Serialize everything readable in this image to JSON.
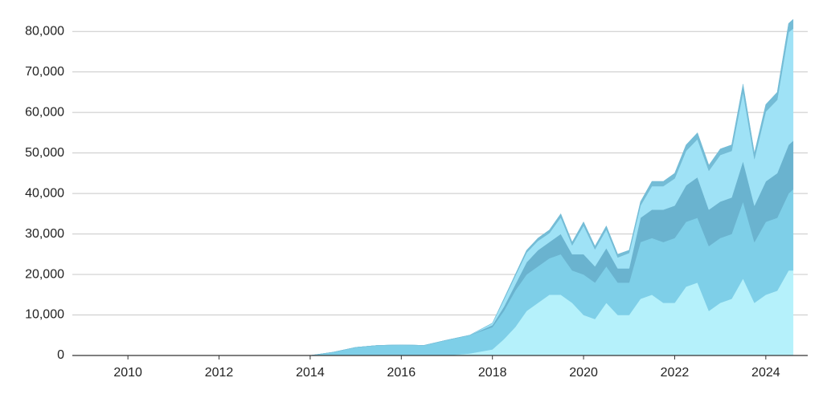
{
  "chart_data": {
    "type": "area",
    "stacked": true,
    "grid": true,
    "x": [
      2014.0,
      2014.5,
      2015.0,
      2015.5,
      2016.0,
      2016.5,
      2017.0,
      2017.5,
      2018.0,
      2018.25,
      2018.5,
      2018.75,
      2019.0,
      2019.25,
      2019.5,
      2019.75,
      2020.0,
      2020.25,
      2020.5,
      2020.75,
      2021.0,
      2021.25,
      2021.5,
      2021.75,
      2022.0,
      2022.25,
      2022.5,
      2022.75,
      2023.0,
      2023.25,
      2023.5,
      2023.75,
      2024.0,
      2024.25,
      2024.5,
      2024.6
    ],
    "xlim": [
      2008.78,
      2024.92
    ],
    "xticks": [
      2010,
      2012,
      2014,
      2016,
      2018,
      2020,
      2022,
      2024
    ],
    "ylim": [
      0,
      84000
    ],
    "yticks": [
      0,
      {
        "value": 10000,
        "label": "10,000"
      },
      {
        "value": 20000,
        "label": "20,000"
      },
      {
        "value": 30000,
        "label": "30,000"
      },
      {
        "value": 40000,
        "label": "40,000"
      },
      {
        "value": 50000,
        "label": "50,000"
      },
      {
        "value": 60000,
        "label": "60,000"
      },
      {
        "value": 70000,
        "label": "70,000"
      },
      {
        "value": 80000,
        "label": "80,000"
      }
    ],
    "series": [
      {
        "color": "#b5f1fb",
        "values": [
          0,
          0,
          0,
          0,
          0,
          0,
          0,
          500,
          1500,
          4000,
          7000,
          11000,
          13000,
          15000,
          15000,
          13000,
          10000,
          9000,
          13000,
          10000,
          10000,
          14000,
          15000,
          13000,
          13000,
          17000,
          18000,
          11000,
          13000,
          14000,
          19000,
          13000,
          15000,
          16000,
          21000,
          21000
        ]
      },
      {
        "color": "#7ecfe8",
        "values": [
          0,
          800,
          2000,
          2500,
          2600,
          2500,
          3800,
          4500,
          5500,
          7000,
          9000,
          9000,
          9000,
          9000,
          10000,
          8000,
          10000,
          9000,
          9000,
          8000,
          8000,
          14000,
          14000,
          15000,
          16000,
          16000,
          16000,
          16000,
          16000,
          16000,
          19000,
          15000,
          18000,
          18000,
          19000,
          20000
        ]
      },
      {
        "color": "#6ab3cf",
        "values": [
          0,
          0,
          0,
          0,
          0,
          0,
          0,
          0,
          500,
          1000,
          1500,
          3000,
          4000,
          4000,
          5000,
          4000,
          5000,
          4000,
          4500,
          3500,
          3500,
          6000,
          7000,
          8000,
          8000,
          9000,
          10000,
          9000,
          9000,
          9000,
          10000,
          9000,
          10000,
          11000,
          12000,
          12000
        ]
      },
      {
        "color": "#9fe2f6",
        "values": [
          0,
          0,
          0,
          0,
          0,
          0,
          0,
          0,
          500,
          1700,
          2100,
          2400,
          2300,
          2200,
          4100,
          2200,
          7100,
          4200,
          4600,
          2700,
          3800,
          3000,
          5800,
          5800,
          6700,
          8500,
          9400,
          9600,
          11500,
          11500,
          17000,
          11500,
          17200,
          18100,
          27800,
          27700
        ]
      },
      {
        "color": "#74bcd6",
        "values": [
          0,
          0,
          0,
          0,
          0,
          0,
          0,
          0,
          0,
          300,
          400,
          600,
          700,
          800,
          900,
          800,
          900,
          800,
          900,
          800,
          700,
          1000,
          1200,
          1200,
          1300,
          1500,
          1600,
          1400,
          1500,
          1500,
          2000,
          1500,
          1800,
          1900,
          2200,
          2300
        ]
      }
    ]
  }
}
